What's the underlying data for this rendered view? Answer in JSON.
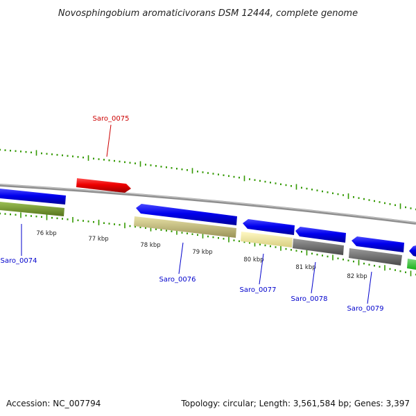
{
  "title": "Novosphingobium aromaticivorans DSM 12444, complete genome",
  "footer": {
    "accession": "Accession: NC_007794",
    "summary": "Topology: circular; Length: 3,561,584 bp; Genes: 3,397"
  },
  "colors": {
    "forward_label": "#cc0000",
    "reverse_label": "#0000cc",
    "tick": "#339900",
    "backbone": "#888888"
  },
  "scale_labels": [
    "76 kbp",
    "77 kbp",
    "78 kbp",
    "79 kbp",
    "80 kbp",
    "81 kbp",
    "82 kbp"
  ],
  "genes": [
    {
      "label": "Saro_0074",
      "strand": "reverse",
      "cog_color": "#6b8e23"
    },
    {
      "label": "Saro_0075",
      "strand": "forward",
      "cog_color": null
    },
    {
      "label": "Saro_0076",
      "strand": "reverse",
      "cog_color": "#bdb76b"
    },
    {
      "label": "Saro_0077",
      "strand": "reverse",
      "cog_color": "#f0e68c"
    },
    {
      "label": "Saro_0078",
      "strand": "reverse",
      "cog_color": "#696969"
    },
    {
      "label": "Saro_0079",
      "strand": "reverse",
      "cog_color": "#696969"
    }
  ]
}
